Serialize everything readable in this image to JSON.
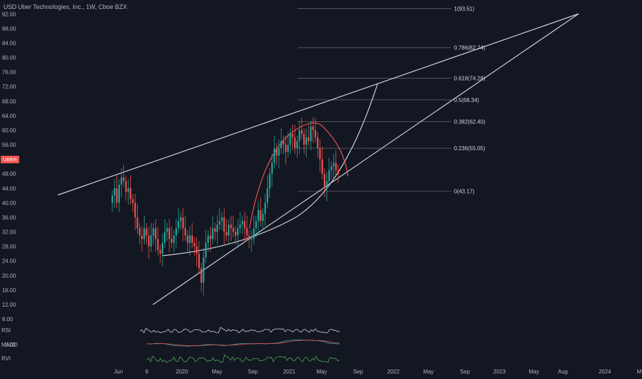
{
  "header": {
    "unit": "USD",
    "title": "Uber Technologies, Inc., 1W, Cboe BZX",
    "symbol": "UBER"
  },
  "colors": {
    "bg": "#131722",
    "up": "#26a69a",
    "down": "#ef5350",
    "line": "#d1d4dc",
    "rsi": "#d1d4dc",
    "macd_line": "#26a69a",
    "macd_signal": "#ef5350",
    "rvi": "#4caf50",
    "arc": "#ef5350"
  },
  "panes": {
    "rsi_label": "RSI",
    "macd_label": "MACD",
    "macd_value": "0.00",
    "rvi_label": "RVI"
  },
  "chart_data": {
    "type": "candlestick",
    "y_ticks": [
      "92.00",
      "88.00",
      "84.00",
      "80.00",
      "76.00",
      "72.00",
      "68.00",
      "64.00",
      "60.00",
      "56.00",
      "52.00",
      "48.00",
      "44.00",
      "40.00",
      "36.00",
      "32.00",
      "28.00",
      "24.00",
      "20.00",
      "16.00",
      "12.00",
      "8.00"
    ],
    "x_ticks": [
      "Jun",
      "9",
      "2020",
      "May",
      "Sep",
      "2021",
      "May",
      "Sep",
      "2022",
      "May",
      "Sep",
      "2023",
      "May",
      "Aug",
      "2024",
      "M"
    ],
    "ylim": [
      8,
      93
    ],
    "fibonacci": [
      {
        "ratio": "1",
        "price": 93.51
      },
      {
        "ratio": "0.786",
        "price": 82.74
      },
      {
        "ratio": "0.618",
        "price": 74.28
      },
      {
        "ratio": "0.5",
        "price": 68.34
      },
      {
        "ratio": "0.382",
        "price": 62.4
      },
      {
        "ratio": "0.236",
        "price": 55.05
      },
      {
        "ratio": "0",
        "price": 43.17
      }
    ],
    "series": [
      {
        "name": "UBER",
        "close": [
          42,
          44,
          40,
          45,
          47,
          46,
          43,
          44,
          41,
          40,
          36,
          33,
          31,
          30,
          33,
          31,
          28,
          31,
          33,
          30,
          27,
          26,
          29,
          32,
          33,
          30,
          29,
          31,
          33,
          35,
          36,
          33,
          31,
          29,
          31,
          29,
          28,
          26,
          22,
          18,
          25,
          29,
          31,
          30,
          33,
          32,
          34,
          35,
          36,
          32,
          31,
          34,
          33,
          32,
          31,
          33,
          34,
          35,
          33,
          31,
          30,
          30,
          33,
          35,
          38,
          35,
          37,
          40,
          44,
          48,
          51,
          55,
          53,
          55,
          57,
          56,
          54,
          56,
          59,
          58,
          55,
          57,
          60,
          59,
          56,
          58,
          57,
          61,
          60,
          58,
          55,
          52,
          48,
          44,
          46,
          49,
          50,
          51,
          49,
          48
        ]
      }
    ]
  }
}
